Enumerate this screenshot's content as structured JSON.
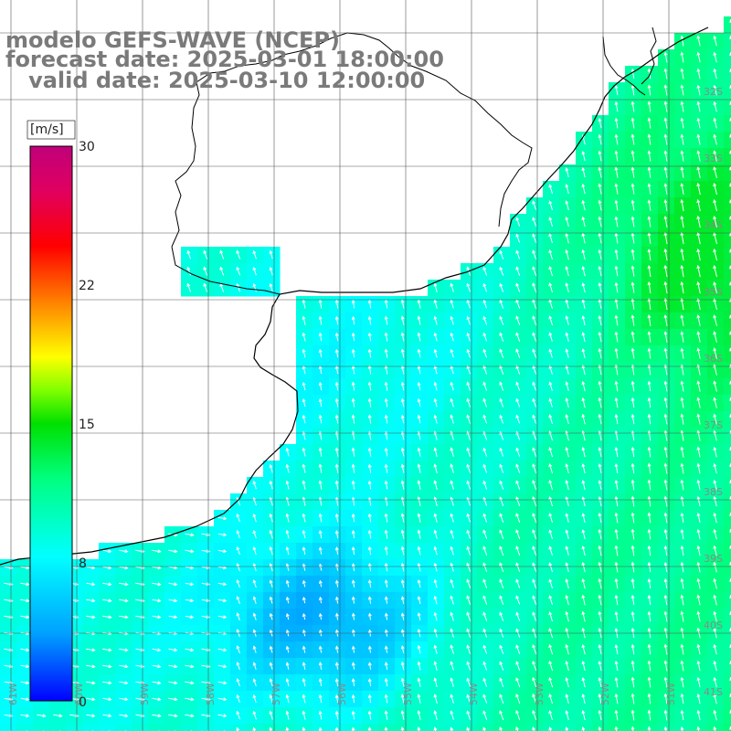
{
  "title": {
    "line1": "modelo GEFS-WAVE (NCEP)",
    "line2": "forecast date: 2025-03-01 18:00:00",
    "line3": "   valid date: 2025-03-10 12:00:00"
  },
  "colorbar": {
    "unit": "[m/s]",
    "ticks": [
      "30",
      "22",
      "15",
      "8",
      "0"
    ],
    "min": 0,
    "max": 30,
    "stops": [
      "#0000ff",
      "#00a0ff",
      "#00ffff",
      "#00ff80",
      "#00ff00",
      "#80ff00",
      "#ffff00",
      "#ff8000",
      "#ff0000",
      "#e00060",
      "#c0007a"
    ]
  },
  "lat_labels": [
    "32S",
    "33S",
    "34S",
    "35S",
    "36S",
    "37S",
    "38S",
    "39S",
    "40S",
    "41S"
  ],
  "lon_labels": [
    "61W",
    "60W",
    "59W",
    "58W",
    "57W",
    "56W",
    "55W",
    "54W",
    "53W",
    "52W",
    "51W"
  ],
  "colors": {
    "land": "#ffffff",
    "coast": "#000000",
    "grid": "#555555",
    "arrow": "#ffffff"
  }
}
